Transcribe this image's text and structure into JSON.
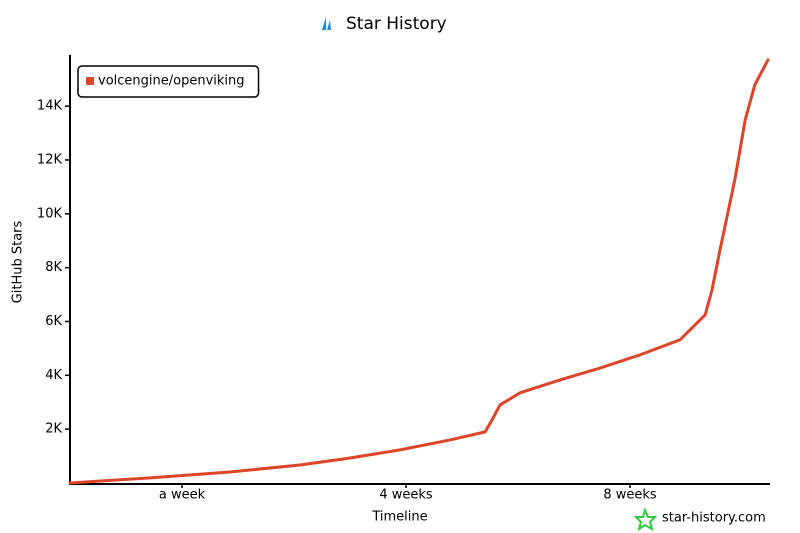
{
  "chart_data": {
    "type": "line",
    "title": "Star History",
    "x_label": "Timeline",
    "y_label": "GitHub Stars",
    "watermark": "star-history.com",
    "x": [
      0,
      10,
      20,
      28.75,
      35,
      41.25,
      47.5,
      51.9,
      52.75,
      53.75,
      56.25,
      61.25,
      66.25,
      71.25,
      76.25,
      79.4,
      80.25,
      81.25,
      83.1,
      84.4,
      85.6,
      87.25
    ],
    "series": [
      {
        "name": "volcengine/openviking",
        "color": "#dd4528",
        "values": [
          0,
          190,
          410,
          670,
          930,
          1230,
          1600,
          1900,
          2340,
          2900,
          3350,
          3830,
          4270,
          4760,
          5320,
          6250,
          7170,
          8660,
          11260,
          13490,
          14790,
          15720
        ]
      }
    ],
    "xlim": [
      0,
      87.5
    ],
    "xticks": [
      {
        "value": 14,
        "label": "a week"
      },
      {
        "value": 42,
        "label": "4 weeks"
      },
      {
        "value": 70,
        "label": "8 weeks"
      }
    ],
    "ylim": [
      0,
      15900
    ],
    "yticks": [
      {
        "value": 2000,
        "label": "2K"
      },
      {
        "value": 4000,
        "label": "4K"
      },
      {
        "value": 6000,
        "label": "6K"
      },
      {
        "value": 8000,
        "label": "8K"
      },
      {
        "value": 10000,
        "label": "10K"
      },
      {
        "value": 12000,
        "label": "12K"
      },
      {
        "value": 14000,
        "label": "14K"
      }
    ],
    "legend": "top-left",
    "grid": false
  }
}
